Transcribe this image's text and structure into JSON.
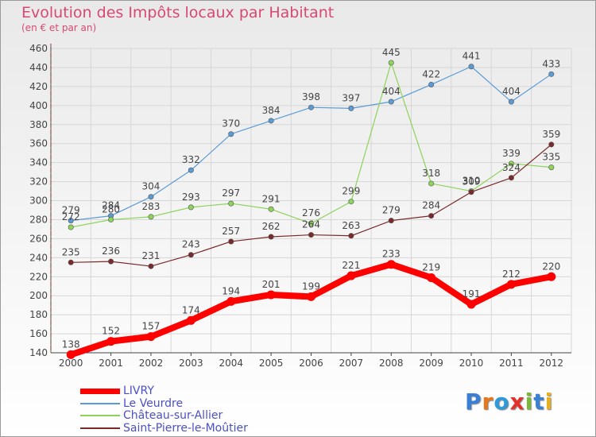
{
  "title": "Evolution des Impôts locaux par Habitant",
  "subtitle": "(en € et par an)",
  "logo": {
    "text": "Proxiti",
    "letters": [
      {
        "ch": "P",
        "color": "#3a7fd6"
      },
      {
        "ch": "r",
        "color": "#e8761c"
      },
      {
        "ch": "o",
        "color": "#2e9bd8"
      },
      {
        "ch": "x",
        "color": "#e6312a"
      },
      {
        "ch": "i",
        "color": "#7ab83a"
      },
      {
        "ch": "t",
        "color": "#3a7fd6"
      },
      {
        "ch": "i",
        "color": "#e8b01c"
      }
    ]
  },
  "chart_data": {
    "type": "line",
    "x": [
      "2000",
      "2001",
      "2002",
      "2003",
      "2004",
      "2005",
      "2006",
      "2007",
      "2008",
      "2009",
      "2010",
      "2011",
      "2012"
    ],
    "ylim": [
      140,
      460
    ],
    "yticks": [
      "140",
      "160",
      "180",
      "200",
      "220",
      "240",
      "260",
      "280",
      "300",
      "320",
      "340",
      "360",
      "380",
      "400",
      "420",
      "440",
      "460"
    ],
    "grid": true,
    "legend_placement": "bottom-left",
    "series": [
      {
        "name": "LIVRY",
        "color": "#ff0000",
        "values": [
          138,
          152,
          157,
          174,
          194,
          201,
          199,
          221,
          233,
          219,
          191,
          212,
          220
        ]
      },
      {
        "name": "Le Veurdre",
        "color": "#5b9bd5",
        "values": [
          279,
          284,
          304,
          332,
          370,
          384,
          398,
          397,
          404,
          422,
          441,
          404,
          433
        ]
      },
      {
        "name": "Château-sur-Allier",
        "color": "#8ed35a",
        "values": [
          272,
          280,
          283,
          293,
          297,
          291,
          276,
          299,
          445,
          318,
          310,
          339,
          335
        ]
      },
      {
        "name": "Saint-Pierre-le-Moûtier",
        "color": "#7a2a2a",
        "values": [
          235,
          236,
          231,
          243,
          257,
          262,
          264,
          263,
          279,
          284,
          309,
          324,
          359
        ]
      }
    ]
  }
}
